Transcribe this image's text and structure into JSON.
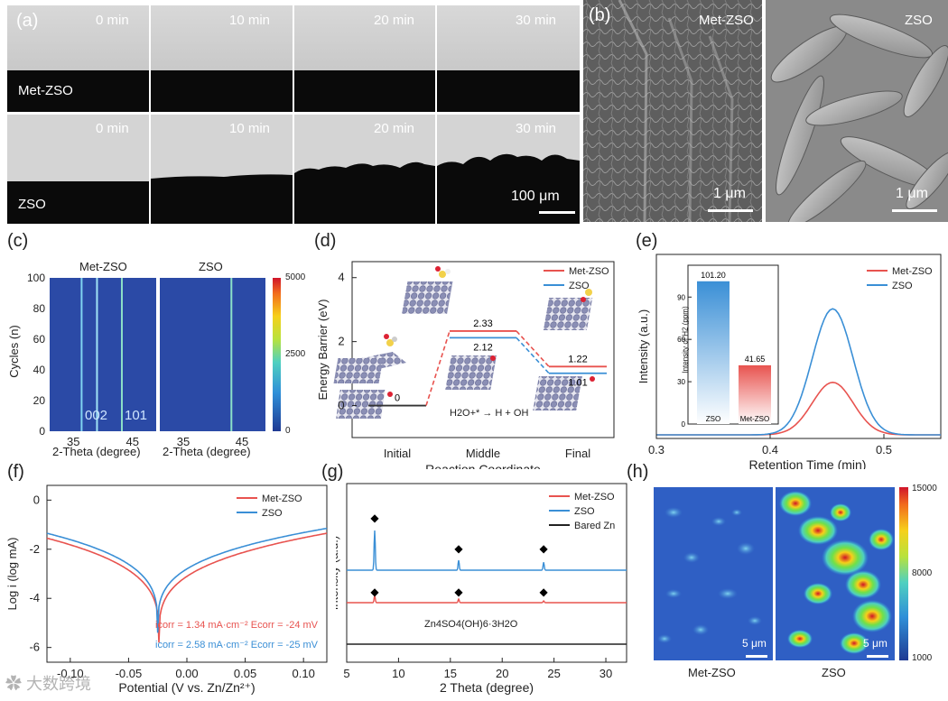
{
  "panels": {
    "a": {
      "label": "(a)",
      "times": [
        "0 min",
        "10 min",
        "20 min",
        "30 min"
      ],
      "rows": [
        "Met-ZSO",
        "ZSO"
      ],
      "scale_bar": "100 μm"
    },
    "b": {
      "label": "(b)",
      "images": [
        "Met-ZSO",
        "ZSO"
      ],
      "scale_bar": "1 μm"
    },
    "c": {
      "label": "(c)",
      "titles": [
        "Met-ZSO",
        "ZSO"
      ],
      "ylabel": "Cycles (n)",
      "xlabel": "2-Theta (degree)",
      "peak_labels": [
        "002",
        "101"
      ],
      "colorbar_ticks": [
        "5000",
        "2500",
        "0"
      ]
    },
    "d": {
      "label": "(d)",
      "inset_equation": "H2O+* → H + OH"
    },
    "e": {
      "label": "(e)",
      "inset_ylabel": "Intensity of H2 (ppm)"
    },
    "f": {
      "label": "(f)",
      "annotations": [
        {
          "text": "icorr = 1.34 mA·cm⁻²  Ecorr = -24 mV",
          "color": "#e8534f"
        },
        {
          "text": "icorr = 2.58 mA·cm⁻²  Ecorr = -25 mV",
          "color": "#3a8fd6"
        }
      ]
    },
    "g": {
      "label": "(g)",
      "annotation": "Zn4SO4(OH)6·3H2O"
    },
    "h": {
      "label": "(h)",
      "images": [
        "Met-ZSO",
        "ZSO"
      ],
      "scale_bar": "5 μm",
      "colorbar_ticks": [
        "15000",
        "8000",
        "1000"
      ]
    }
  },
  "watermark": "大数跨境",
  "chart_data": [
    {
      "type": "line",
      "panel": "d",
      "title": "",
      "xlabel": "Reaction Coordinate",
      "ylabel": "Energy Barrier (eV)",
      "categories": [
        "Initial",
        "Middle",
        "Final"
      ],
      "ylim": [
        -1,
        4.5
      ],
      "yticks": [
        0,
        2,
        4
      ],
      "series": [
        {
          "name": "Met-ZSO",
          "color": "#e8534f",
          "values": [
            0,
            2.33,
            1.22
          ]
        },
        {
          "name": "ZSO",
          "color": "#3a8fd6",
          "values": [
            0,
            2.12,
            1.01
          ]
        }
      ],
      "value_labels": [
        "0",
        "2.33",
        "2.12",
        "1.22",
        "1.01"
      ],
      "legend": "top-right"
    },
    {
      "type": "line",
      "panel": "e",
      "title": "",
      "xlabel": "Retention Time (min)",
      "ylabel": "Intensity (a.u.)",
      "xlim": [
        0.3,
        0.55
      ],
      "xticks": [
        0.3,
        0.4,
        0.5
      ],
      "series": [
        {
          "name": "Met-ZSO",
          "color": "#e8534f",
          "peak_center": 0.455,
          "peak_height": 0.3,
          "peak_width": 0.018
        },
        {
          "name": "ZSO",
          "color": "#3a8fd6",
          "peak_center": 0.455,
          "peak_height": 0.72,
          "peak_width": 0.018
        }
      ],
      "legend": "top-right",
      "inset": {
        "type": "bar",
        "categories": [
          "ZSO",
          "Met-ZSO"
        ],
        "values": [
          101.2,
          41.65
        ],
        "value_labels": [
          "101.20",
          "41.65"
        ],
        "ylim": [
          0,
          110
        ],
        "yticks": [
          0,
          30,
          60,
          90
        ],
        "colors": [
          "#3a8fd6",
          "#e8534f"
        ]
      }
    },
    {
      "type": "line",
      "panel": "f",
      "title": "",
      "xlabel": "Potential (V vs. Zn/Zn²⁺)",
      "ylabel": "Log i (log mA)",
      "xlim": [
        -0.12,
        0.12
      ],
      "ylim": [
        -6.6,
        0.6
      ],
      "xticks": [
        -0.1,
        -0.05,
        0.0,
        0.05,
        0.1
      ],
      "xtick_labels": [
        "-0.10",
        "-0.05",
        "0.00",
        "0.05",
        "0.10"
      ],
      "yticks": [
        0,
        -2,
        -4,
        -6
      ],
      "series": [
        {
          "name": "Met-ZSO",
          "color": "#e8534f",
          "ecorr": -0.024,
          "min": -5.8,
          "left": -1.55,
          "right": -1.35
        },
        {
          "name": "ZSO",
          "color": "#3a8fd6",
          "ecorr": -0.025,
          "min": -5.4,
          "left": -1.35,
          "right": -1.15
        }
      ],
      "legend": "top-right"
    },
    {
      "type": "line",
      "panel": "g",
      "title": "",
      "xlabel": "2 Theta (degree)",
      "ylabel": "Intensity (a.u.)",
      "xlim": [
        5,
        32
      ],
      "xticks": [
        5,
        10,
        15,
        20,
        25,
        30
      ],
      "series": [
        {
          "name": "Met-ZSO",
          "color": "#e8534f",
          "peaks": [
            [
              7.7,
              0.2
            ],
            [
              15.8,
              0.1
            ],
            [
              24.0,
              0.05
            ]
          ]
        },
        {
          "name": "ZSO",
          "color": "#3a8fd6",
          "peaks": [
            [
              7.7,
              1.0
            ],
            [
              15.8,
              0.25
            ],
            [
              24.0,
              0.2
            ]
          ]
        },
        {
          "name": "Bared Zn",
          "color": "#222222",
          "peaks": []
        }
      ],
      "markers_at": [
        7.7,
        15.8,
        24.0
      ],
      "legend": "top-right"
    },
    {
      "type": "heatmap",
      "panel": "c",
      "xticks": [
        35,
        45
      ],
      "yticks": [
        0,
        20,
        40,
        60,
        80,
        100
      ],
      "lines": [
        {
          "plot": "Met-ZSO",
          "x": 36.4,
          "color": "#7fd3f0"
        },
        {
          "plot": "Met-ZSO",
          "x": 39.0,
          "color": "#9fe3f5"
        },
        {
          "plot": "Met-ZSO",
          "x": 43.2,
          "color": "#8ce0c8"
        },
        {
          "plot": "ZSO",
          "x": 43.2,
          "color": "#8ce0c8"
        }
      ]
    }
  ]
}
